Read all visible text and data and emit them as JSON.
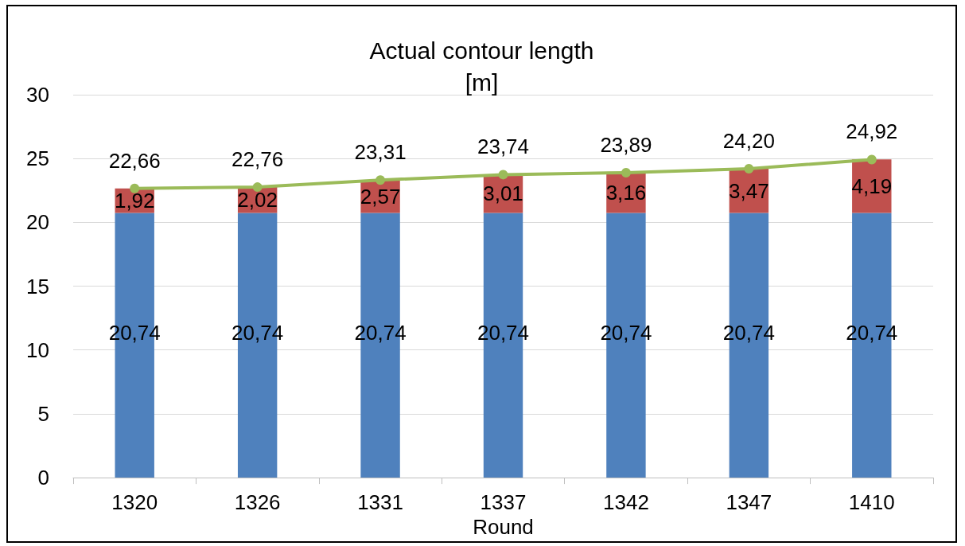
{
  "chart_data": {
    "type": "bar",
    "title": "Actual contour length\n[m]",
    "xlabel": "Round",
    "stacked": true,
    "grid": "y",
    "categories": [
      "1320",
      "1326",
      "1331",
      "1337",
      "1342",
      "1347",
      "1410"
    ],
    "ylim": [
      0,
      30
    ],
    "yticks": [
      0,
      5,
      10,
      15,
      20,
      25,
      30
    ],
    "series": [
      {
        "color": "#4f81bd",
        "values": [
          20.74,
          20.74,
          20.74,
          20.74,
          20.74,
          20.74,
          20.74
        ],
        "value_labels": [
          "20,74",
          "20,74",
          "20,74",
          "20,74",
          "20,74",
          "20,74",
          "20,74"
        ]
      },
      {
        "color": "#c0504d",
        "values": [
          1.92,
          2.02,
          2.57,
          3.01,
          3.16,
          3.47,
          4.19
        ],
        "value_labels": [
          "1,92",
          "2,02",
          "2,57",
          "3,01",
          "3,16",
          "3,47",
          "4,19"
        ]
      },
      {
        "type": "line",
        "marker": "circle",
        "line_style": "solid",
        "color": "#9bbb59",
        "values": [
          22.66,
          22.76,
          23.31,
          23.74,
          23.89,
          24.2,
          24.92
        ],
        "value_labels": [
          "22,66",
          "22,76",
          "23,31",
          "23,74",
          "23,89",
          "24,20",
          "24,92"
        ]
      }
    ]
  }
}
